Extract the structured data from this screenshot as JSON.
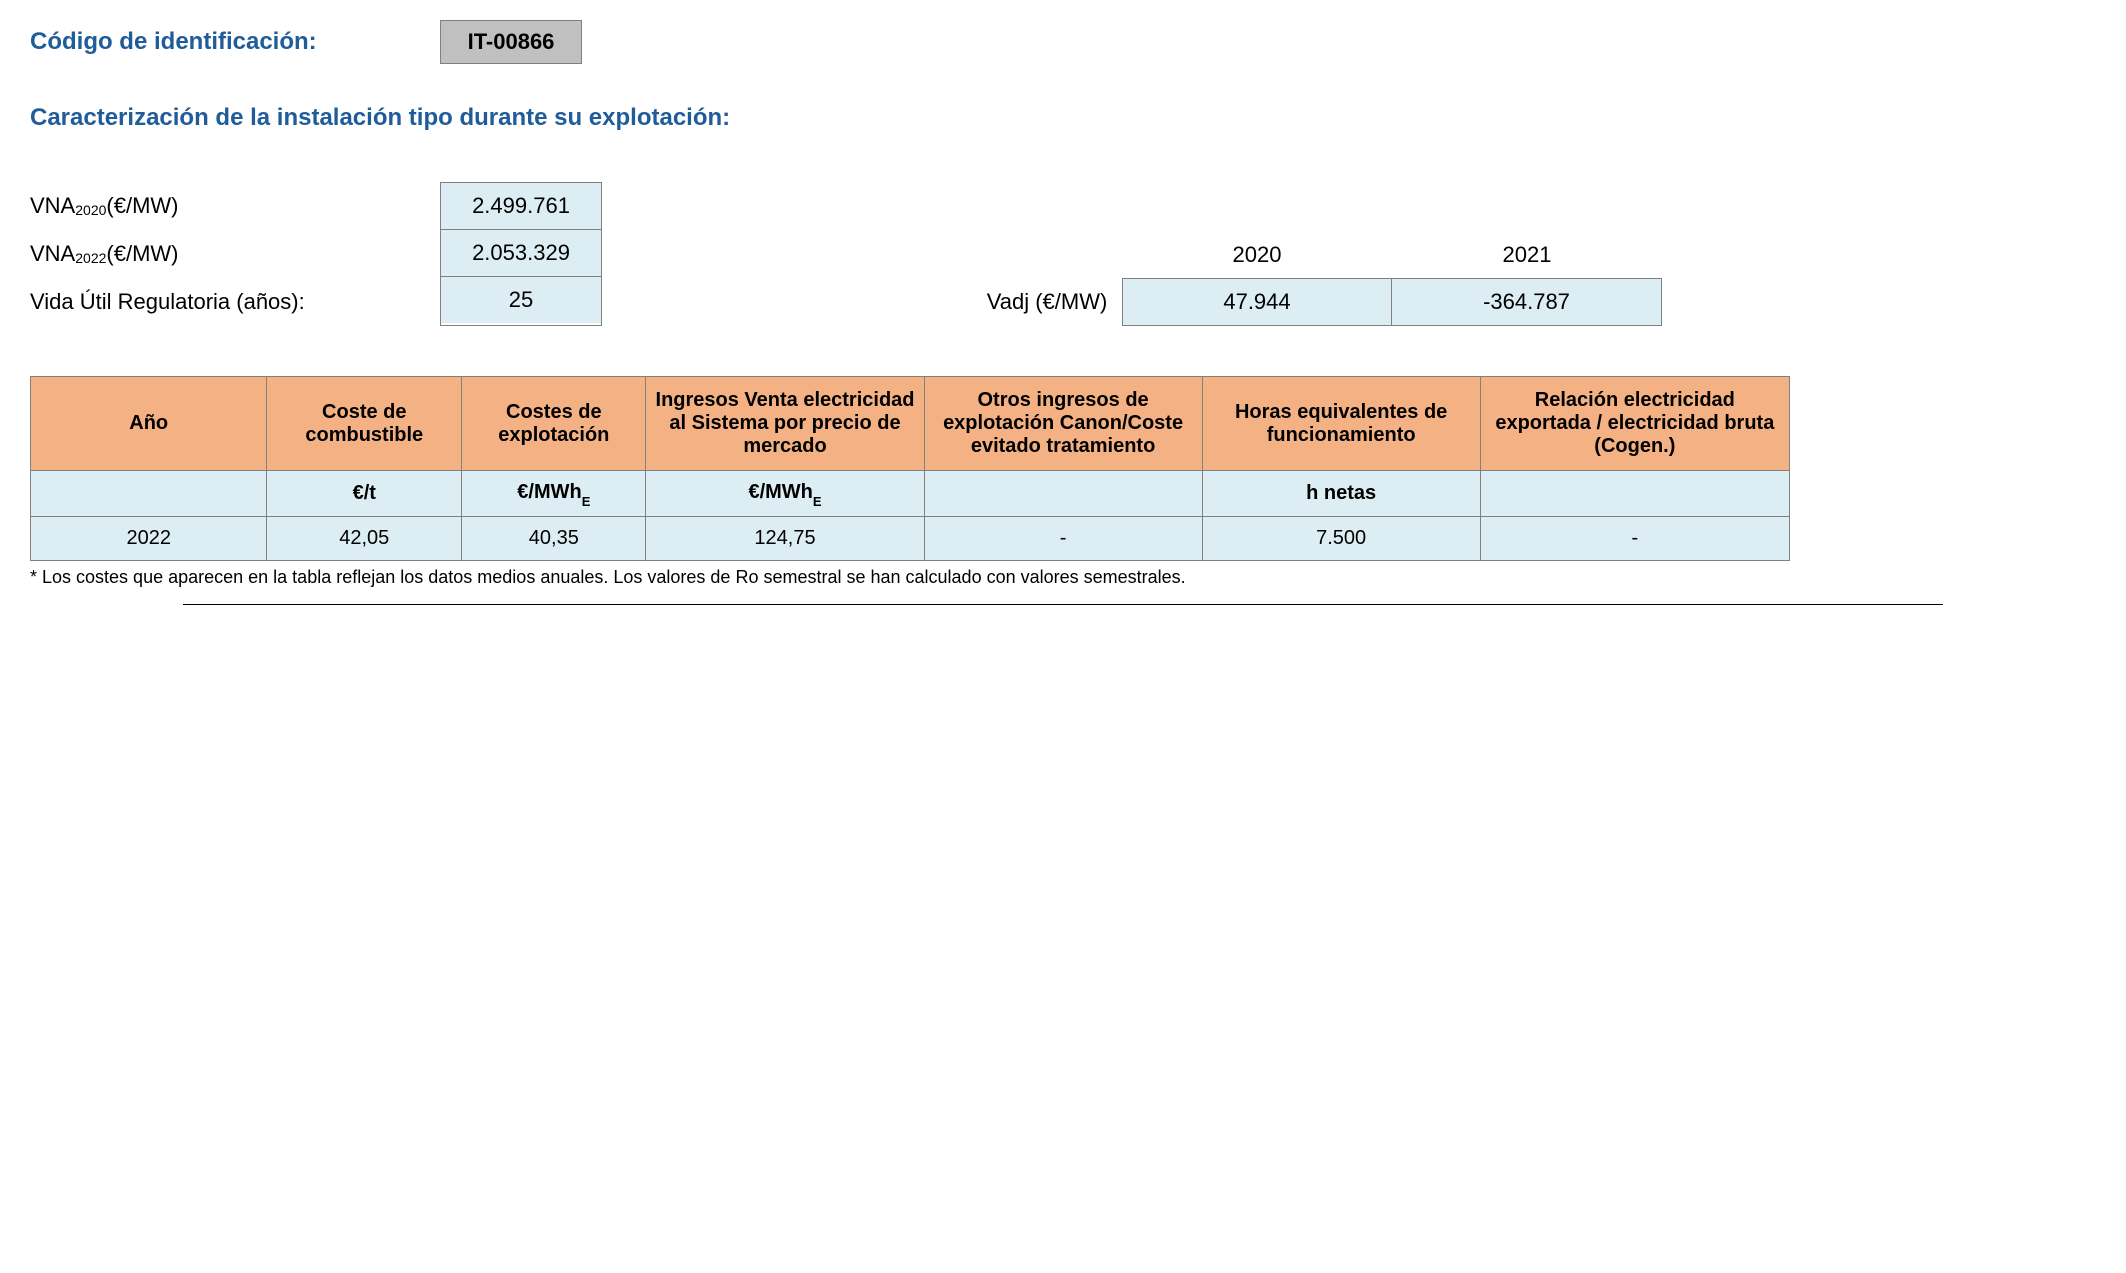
{
  "header": {
    "label": "Código de identificación:",
    "code": "IT-00866"
  },
  "section_title": "Caracterización de la instalación tipo durante su explotación:",
  "params": {
    "vna2020_label_pre": "VNA",
    "vna2020_label_sub": "2020",
    "vna2020_label_post": " (€/MW)",
    "vna2020_value": "2.499.761",
    "vna2022_label_pre": "VNA",
    "vna2022_label_sub": "2022",
    "vna2022_label_post": " (€/MW)",
    "vna2022_value": "2.053.329",
    "vida_label": "Vida Útil Regulatoria (años):",
    "vida_value": "25"
  },
  "vadj": {
    "year1": "2020",
    "year2": "2021",
    "label": "Vadj (€/MW)",
    "val1": "47.944",
    "val2": "-364.787"
  },
  "table": {
    "headers": {
      "ano": "Año",
      "comb": "Coste de combustible",
      "expl": "Costes de explotación",
      "ing": "Ingresos Venta electricidad al Sistema por precio de mercado",
      "otros": "Otros ingresos de explotación Canon/Coste evitado tratamiento",
      "horas": "Horas equivalentes de funcionamiento",
      "rel": "Relación electricidad exportada / electricidad bruta (Cogen.)"
    },
    "units": {
      "ano": "",
      "comb": "€/t",
      "expl_pre": "€/MWh",
      "expl_sub": "E",
      "ing_pre": "€/MWh",
      "ing_sub": "E",
      "otros": "",
      "horas": "h netas",
      "rel": ""
    },
    "row": {
      "ano": "2022",
      "comb": "42,05",
      "expl": "40,35",
      "ing": "124,75",
      "otros": "-",
      "horas": "7.500",
      "rel": "-"
    }
  },
  "footnote": "* Los costes que aparecen en la tabla reflejan los datos medios anuales. Los valores de Ro semestral se han calculado con valores semestrales.",
  "colors": {
    "heading": "#1f5c99",
    "cell_bg": "#dceef3",
    "header_bg": "#f4b183",
    "code_bg": "#c0c0c0",
    "border": "#808080"
  }
}
